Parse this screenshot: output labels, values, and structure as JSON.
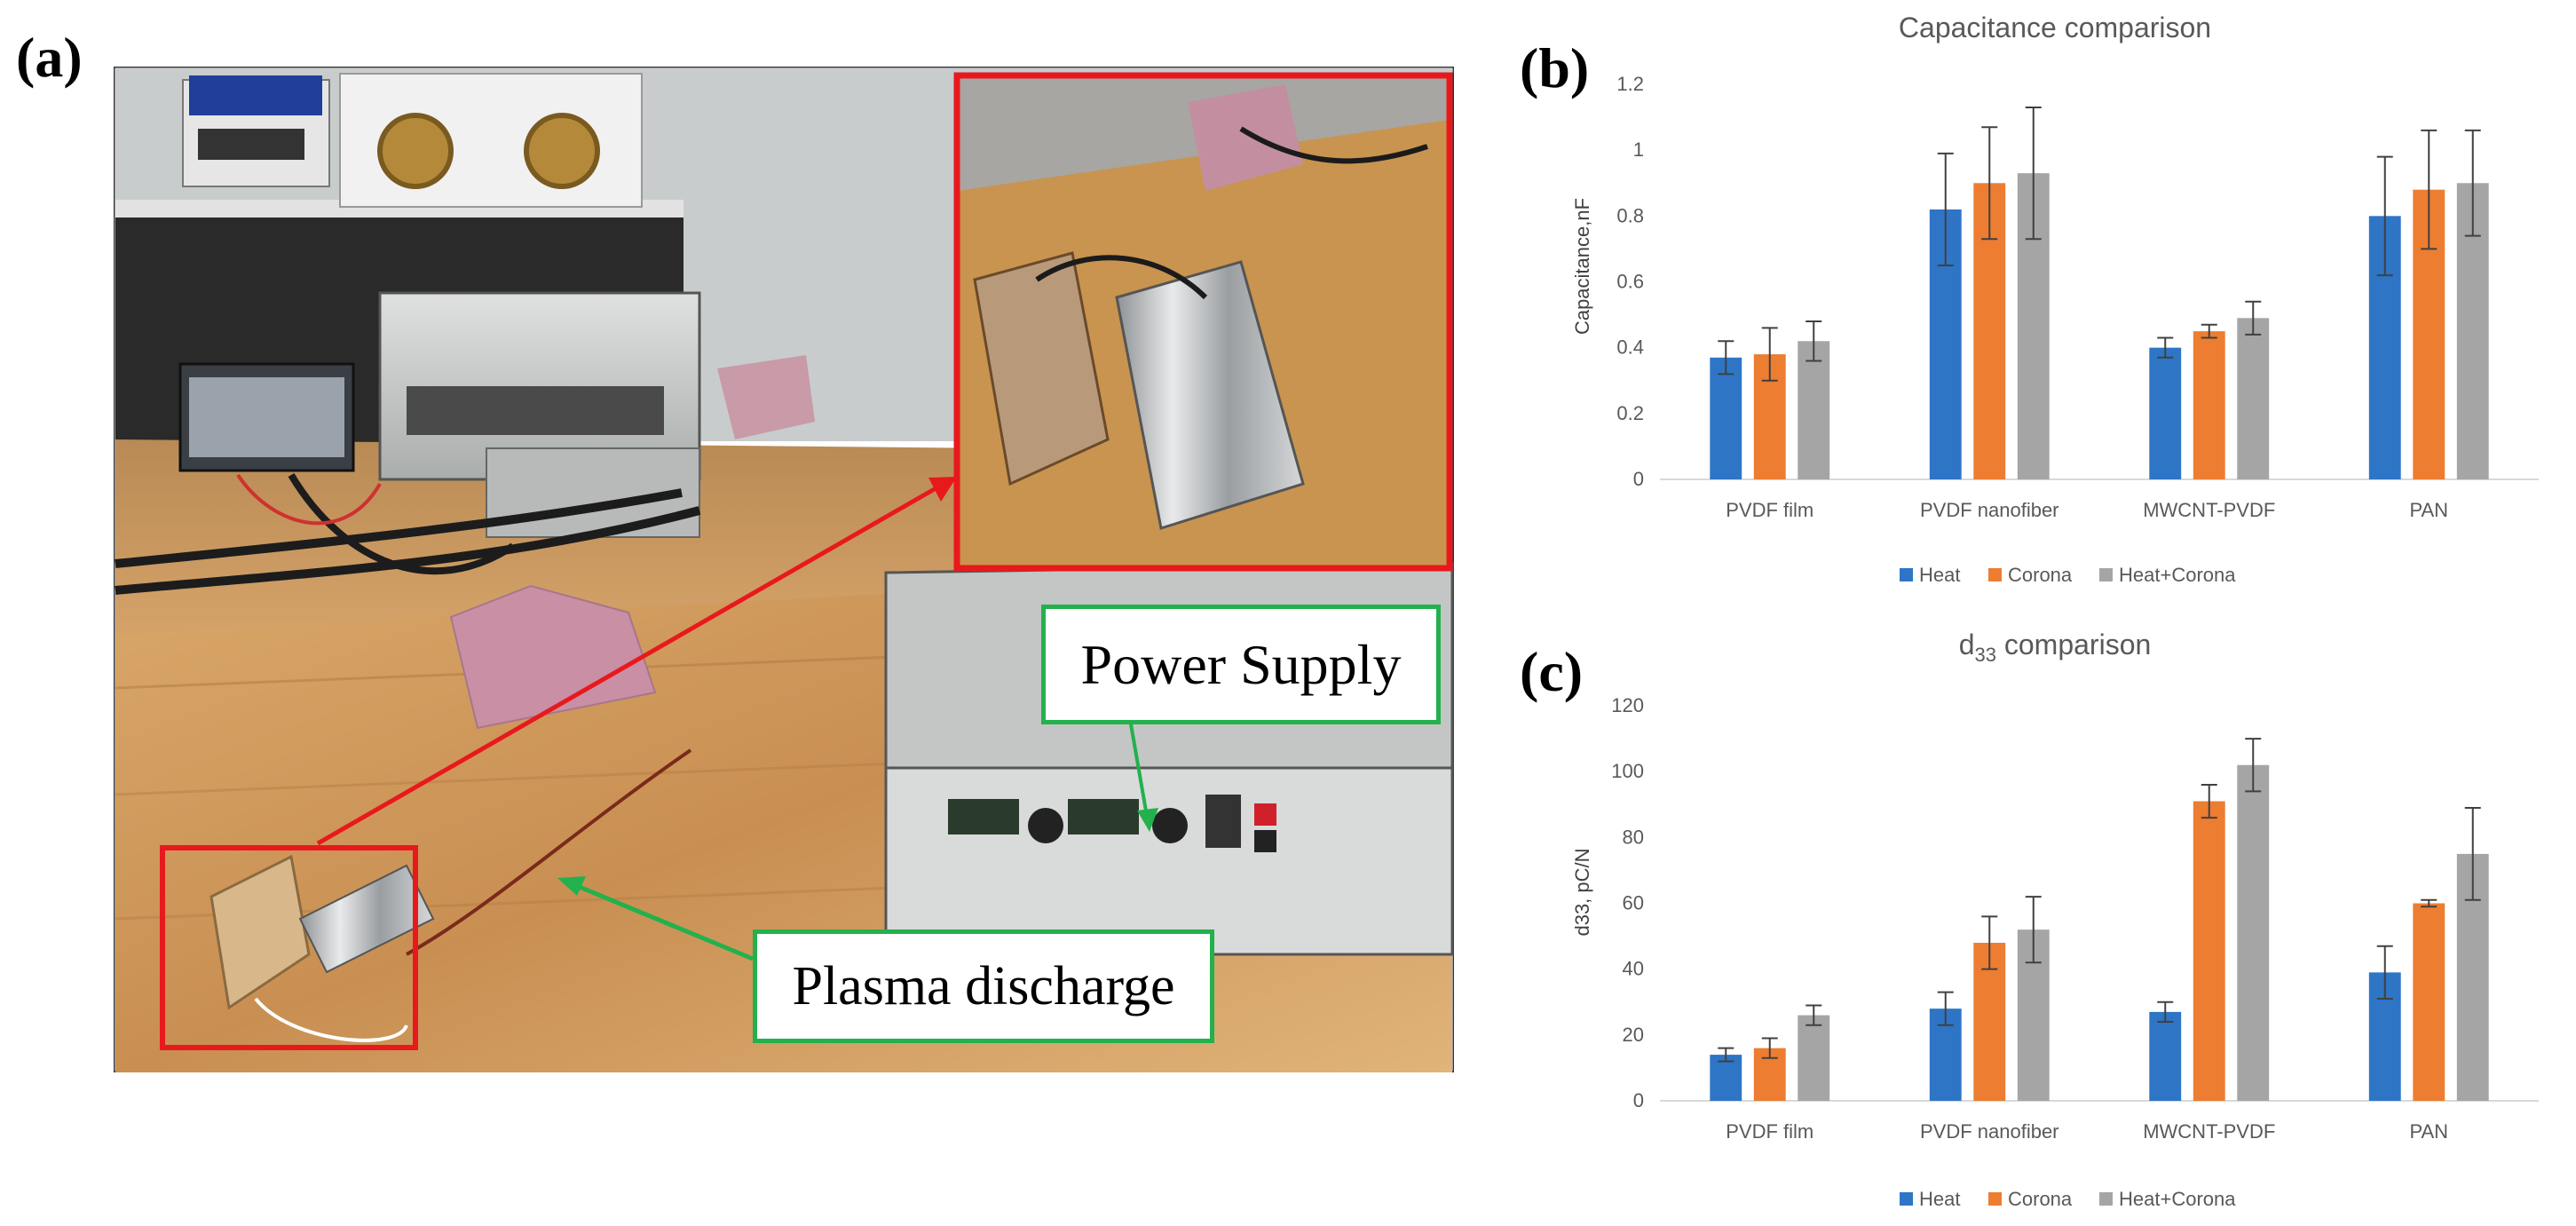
{
  "panels": {
    "a": "(a)",
    "b": "(b)",
    "c": "(c)"
  },
  "photo": {
    "power_supply_label": "Power Supply",
    "plasma_discharge_label": "Plasma discharge",
    "colors": {
      "callout_border": "#22b14c",
      "zoom_box": "#e8191d",
      "arrow_green": "#22b14c"
    }
  },
  "chart_data": [
    {
      "type": "bar",
      "title": "Capacitance comparison",
      "xlabel": "",
      "ylabel": "Capacitance,nF",
      "categories": [
        "PVDF film",
        "PVDF nanofiber",
        "MWCNT-PVDF",
        "PAN"
      ],
      "series": [
        {
          "name": "Heat",
          "color": "#2e75c6",
          "values": [
            0.37,
            0.82,
            0.4,
            0.8
          ],
          "errors": [
            0.05,
            0.17,
            0.03,
            0.18
          ]
        },
        {
          "name": "Corona",
          "color": "#ed7d31",
          "values": [
            0.38,
            0.9,
            0.45,
            0.88
          ],
          "errors": [
            0.08,
            0.17,
            0.02,
            0.18
          ]
        },
        {
          "name": "Heat+Corona",
          "color": "#a5a5a5",
          "values": [
            0.42,
            0.93,
            0.49,
            0.9
          ],
          "errors": [
            0.06,
            0.2,
            0.05,
            0.16
          ]
        }
      ],
      "ylim": [
        0,
        1.2
      ],
      "yticks": [
        "0",
        "0.2",
        "0.4",
        "0.6",
        "0.8",
        "1",
        "1.2"
      ],
      "grid": false,
      "legend": "bottom"
    },
    {
      "type": "bar",
      "title": "d33 comparison",
      "title_parts": {
        "base": "d",
        "sub": "33",
        "rest": " comparison"
      },
      "xlabel": "",
      "ylabel": "d33, pC/N",
      "categories": [
        "PVDF film",
        "PVDF nanofiber",
        "MWCNT-PVDF",
        "PAN"
      ],
      "series": [
        {
          "name": "Heat",
          "color": "#2e75c6",
          "values": [
            14,
            28,
            27,
            39
          ],
          "errors": [
            2,
            5,
            3,
            8
          ]
        },
        {
          "name": "Corona",
          "color": "#ed7d31",
          "values": [
            16,
            48,
            91,
            60
          ],
          "errors": [
            3,
            8,
            5,
            1
          ]
        },
        {
          "name": "Heat+Corona",
          "color": "#a5a5a5",
          "values": [
            26,
            52,
            102,
            75
          ],
          "errors": [
            3,
            10,
            8,
            14
          ]
        }
      ],
      "ylim": [
        0,
        120
      ],
      "yticks": [
        "0",
        "20",
        "40",
        "60",
        "80",
        "100",
        "120"
      ],
      "grid": false,
      "legend": "bottom"
    }
  ]
}
